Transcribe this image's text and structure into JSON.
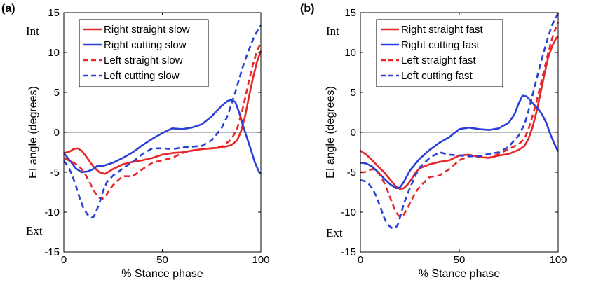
{
  "chart_data": [
    {
      "type": "line",
      "panel_label": "(a)",
      "xlabel": "% Stance phase",
      "ylabel": "EI angle (degrees)",
      "xlim": [
        0,
        100
      ],
      "ylim": [
        -15,
        15
      ],
      "xticks": [
        0,
        50,
        100
      ],
      "yticks": [
        -15,
        -10,
        -5,
        0,
        5,
        10,
        15
      ],
      "annotations": {
        "top": "Int",
        "bottom": "Ext"
      },
      "zero_line": true,
      "legend_position": "top-right",
      "series": [
        {
          "name": "Right straight slow",
          "color": "#e8262a",
          "dash": "solid",
          "x": [
            0,
            3,
            5,
            7,
            9,
            11,
            13,
            15,
            18,
            21,
            25,
            30,
            35,
            40,
            45,
            50,
            55,
            60,
            65,
            70,
            75,
            80,
            85,
            88,
            90,
            92,
            94,
            96,
            98,
            100
          ],
          "y": [
            -2.6,
            -2.4,
            -2.1,
            -2.0,
            -2.3,
            -2.9,
            -3.6,
            -4.3,
            -5.0,
            -5.2,
            -4.6,
            -4.0,
            -3.7,
            -3.5,
            -3.2,
            -2.8,
            -2.6,
            -2.5,
            -2.3,
            -2.1,
            -2.0,
            -1.9,
            -1.6,
            -1.0,
            0.2,
            2.0,
            4.5,
            6.8,
            8.8,
            10.2
          ]
        },
        {
          "name": "Right cutting slow",
          "color": "#2a3fd6",
          "dash": "solid",
          "x": [
            0,
            3,
            6,
            9,
            12,
            15,
            17,
            20,
            25,
            30,
            35,
            40,
            45,
            50,
            55,
            60,
            65,
            70,
            75,
            78,
            80,
            83,
            85,
            87,
            89,
            91,
            93,
            95,
            97,
            99,
            100
          ],
          "y": [
            -2.6,
            -3.5,
            -4.5,
            -5.0,
            -4.9,
            -4.6,
            -4.2,
            -4.2,
            -3.8,
            -3.2,
            -2.5,
            -1.6,
            -0.8,
            -0.1,
            0.5,
            0.4,
            0.6,
            1.0,
            2.0,
            2.8,
            3.3,
            3.9,
            4.1,
            3.8,
            2.5,
            0.8,
            -0.7,
            -2.2,
            -3.8,
            -4.9,
            -5.2
          ]
        },
        {
          "name": "Left straight slow",
          "color": "#e8262a",
          "dash": "dashed",
          "x": [
            0,
            3,
            5,
            7,
            9,
            11,
            13,
            15,
            17,
            19,
            21,
            23,
            25,
            28,
            30,
            35,
            40,
            45,
            50,
            55,
            60,
            65,
            70,
            75,
            80,
            85,
            88,
            90,
            92,
            94,
            96,
            98,
            100
          ],
          "y": [
            -3.2,
            -3.6,
            -3.8,
            -4.1,
            -4.6,
            -5.3,
            -6.2,
            -7.2,
            -8.0,
            -8.4,
            -8.1,
            -7.3,
            -6.6,
            -5.9,
            -5.5,
            -5.5,
            -4.6,
            -3.8,
            -3.5,
            -3.2,
            -2.6,
            -2.3,
            -2.1,
            -2.0,
            -1.8,
            -0.9,
            0.5,
            2.2,
            4.2,
            6.5,
            8.5,
            10.2,
            11.2
          ]
        },
        {
          "name": "Left cutting slow",
          "color": "#2a3fd6",
          "dash": "dashed",
          "x": [
            0,
            2,
            4,
            6,
            8,
            10,
            12,
            14,
            15,
            16,
            18,
            20,
            22,
            25,
            28,
            30,
            35,
            40,
            45,
            50,
            55,
            60,
            65,
            70,
            75,
            80,
            83,
            85,
            87,
            89,
            91,
            93,
            95,
            97,
            99,
            100
          ],
          "y": [
            -3.6,
            -4.2,
            -5.2,
            -6.6,
            -8.2,
            -9.5,
            -10.3,
            -10.7,
            -10.6,
            -10.2,
            -8.9,
            -7.3,
            -6.2,
            -5.4,
            -4.9,
            -4.5,
            -3.7,
            -2.7,
            -2.0,
            -2.0,
            -2.1,
            -1.9,
            -1.8,
            -1.7,
            -1.0,
            0.5,
            2.0,
            3.5,
            5.0,
            6.7,
            8.3,
            9.7,
            11.0,
            12.2,
            13.0,
            13.4
          ]
        }
      ]
    },
    {
      "type": "line",
      "panel_label": "(b)",
      "xlabel": "% Stance phase",
      "ylabel": "EI angle (degrees)",
      "xlim": [
        0,
        100
      ],
      "ylim": [
        -15,
        15
      ],
      "xticks": [
        0,
        50,
        100
      ],
      "yticks": [
        -15,
        -10,
        -5,
        0,
        5,
        10,
        15
      ],
      "annotations": {
        "top": "Int",
        "bottom": "Ext"
      },
      "zero_line": true,
      "legend_position": "top-right",
      "series": [
        {
          "name": "Right straight fast",
          "color": "#e8262a",
          "dash": "solid",
          "x": [
            0,
            3,
            6,
            9,
            12,
            15,
            18,
            20,
            22,
            24,
            26,
            28,
            30,
            35,
            40,
            45,
            50,
            55,
            60,
            65,
            70,
            75,
            80,
            83,
            85,
            87,
            89,
            91,
            93,
            95,
            97,
            99,
            100
          ],
          "y": [
            -2.3,
            -2.8,
            -3.5,
            -4.3,
            -5.0,
            -5.9,
            -6.8,
            -7.1,
            -7.0,
            -6.5,
            -5.8,
            -5.0,
            -4.5,
            -4.0,
            -3.7,
            -3.5,
            -2.9,
            -2.8,
            -3.1,
            -3.2,
            -2.9,
            -2.7,
            -2.2,
            -1.7,
            -0.8,
            0.6,
            2.5,
            4.8,
            7.2,
            9.4,
            10.8,
            11.8,
            12.0
          ]
        },
        {
          "name": "Right cutting fast",
          "color": "#2a3fd6",
          "dash": "solid",
          "x": [
            0,
            3,
            6,
            9,
            12,
            15,
            18,
            20,
            22,
            25,
            30,
            35,
            40,
            45,
            50,
            55,
            60,
            65,
            70,
            75,
            78,
            80,
            82,
            84,
            86,
            88,
            90,
            92,
            94,
            96,
            98,
            100
          ],
          "y": [
            -3.8,
            -3.9,
            -4.3,
            -5.0,
            -5.8,
            -6.5,
            -7.0,
            -6.9,
            -6.2,
            -4.8,
            -3.3,
            -2.2,
            -1.3,
            -0.6,
            0.4,
            0.6,
            0.4,
            0.3,
            0.5,
            1.2,
            2.3,
            3.6,
            4.6,
            4.5,
            4.0,
            3.4,
            2.9,
            2.2,
            1.2,
            -0.2,
            -1.4,
            -2.4
          ]
        },
        {
          "name": "Left straight fast",
          "color": "#e8262a",
          "dash": "dashed",
          "x": [
            0,
            2,
            4,
            6,
            8,
            10,
            12,
            14,
            16,
            18,
            20,
            22,
            24,
            26,
            28,
            30,
            35,
            40,
            45,
            50,
            55,
            60,
            65,
            70,
            75,
            80,
            83,
            85,
            87,
            89,
            91,
            93,
            95,
            97,
            99,
            100
          ],
          "y": [
            -5.0,
            -5.0,
            -4.8,
            -4.6,
            -4.8,
            -5.4,
            -6.3,
            -7.5,
            -8.8,
            -10.0,
            -10.6,
            -10.3,
            -9.4,
            -8.4,
            -7.5,
            -6.8,
            -5.6,
            -5.4,
            -4.6,
            -3.5,
            -3.0,
            -3.0,
            -3.2,
            -2.7,
            -2.1,
            -1.5,
            -0.8,
            0.4,
            2.0,
            3.8,
            5.8,
            7.9,
            10.0,
            11.8,
            13.2,
            13.8
          ]
        },
        {
          "name": "Left cutting fast",
          "color": "#2a3fd6",
          "dash": "dashed",
          "x": [
            0,
            2,
            4,
            6,
            8,
            10,
            12,
            14,
            16,
            17,
            18,
            19,
            20,
            22,
            25,
            28,
            30,
            35,
            40,
            45,
            50,
            55,
            60,
            65,
            70,
            75,
            80,
            83,
            85,
            87,
            89,
            91,
            93,
            95,
            97,
            99,
            100
          ],
          "y": [
            -6.0,
            -6.1,
            -6.4,
            -7.0,
            -8.0,
            -9.3,
            -10.7,
            -11.6,
            -12.0,
            -12.0,
            -11.9,
            -11.5,
            -10.7,
            -8.9,
            -7.0,
            -5.3,
            -4.4,
            -3.2,
            -2.5,
            -2.8,
            -2.9,
            -3.0,
            -3.0,
            -2.7,
            -2.5,
            -1.8,
            -0.4,
            1.0,
            2.7,
            4.6,
            6.6,
            8.5,
            10.3,
            12.0,
            13.5,
            14.4,
            15.0
          ]
        }
      ]
    }
  ]
}
